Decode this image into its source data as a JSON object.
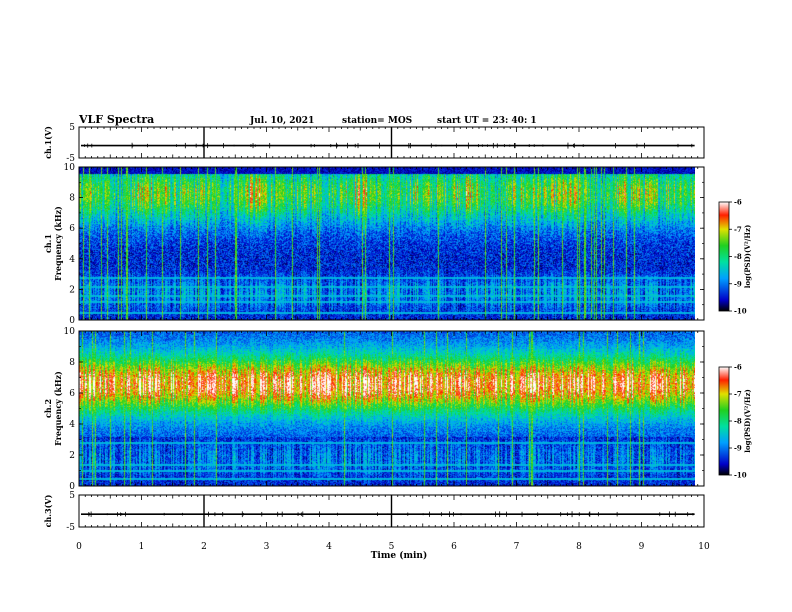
{
  "header": {
    "title": "VLF Spectra",
    "date": "Jul. 10, 2021",
    "station": "station= MOS",
    "start": "start  UT =   23: 40: 1"
  },
  "chart_data": [
    {
      "type": "line",
      "panel": "ch1-waveform",
      "ylabel": "ch.1(V)",
      "ylim": [
        -5,
        5
      ],
      "yticks": [
        "5",
        "-5"
      ],
      "xlim": [
        0,
        10
      ],
      "series": [
        {
          "values_description_free": true,
          "level": -1.0
        }
      ]
    },
    {
      "type": "heatmap",
      "panel": "ch1-spectrogram",
      "ylabel_top": "ch.1",
      "ylabel": "Frequency (kHz)",
      "ylim": [
        0,
        10
      ],
      "yticks": [
        "0",
        "2",
        "4",
        "6",
        "8",
        "10"
      ],
      "xlim": [
        0,
        10
      ],
      "colorbar": {
        "label": "log(PSD)(V²/Hz)",
        "min": -10,
        "max": -6,
        "ticks": [
          "-6",
          "-7",
          "-8",
          "-9",
          "-10"
        ]
      },
      "features": {
        "band_kHz": [
          3.5,
          9.5
        ],
        "band_peak_kHz": 8.5,
        "lines_kHz": [
          0.5,
          1.2,
          1.6,
          2.2,
          2.8
        ]
      }
    },
    {
      "type": "heatmap",
      "panel": "ch2-spectrogram",
      "ylabel_top": "ch.2",
      "ylabel": "Frequency (kHz)",
      "ylim": [
        0,
        10
      ],
      "yticks": [
        "0",
        "2",
        "4",
        "6",
        "8",
        "10"
      ],
      "xlim": [
        0,
        10
      ],
      "colorbar": {
        "label": "log(PSD)(V²/Hz)",
        "min": -10,
        "max": -6,
        "ticks": [
          "-6",
          "-7",
          "-8",
          "-9",
          "-10"
        ]
      },
      "features": {
        "band_kHz": [
          3.5,
          10
        ],
        "band_peak_kHz": 6.5,
        "lines_kHz": [
          0.5,
          1.0,
          1.4,
          2.8
        ]
      }
    },
    {
      "type": "line",
      "panel": "ch3-waveform",
      "ylabel": "ch.3(V)",
      "ylim": [
        -5,
        5
      ],
      "yticks": [
        "5",
        "-5"
      ],
      "xlim": [
        0,
        10
      ],
      "series": [
        {
          "level": -1.0
        }
      ]
    }
  ],
  "xaxis": {
    "label": "Time (min)",
    "ticks": [
      "0",
      "1",
      "2",
      "3",
      "4",
      "5",
      "6",
      "7",
      "8",
      "9",
      "10"
    ],
    "data_end_min": 9.85
  }
}
